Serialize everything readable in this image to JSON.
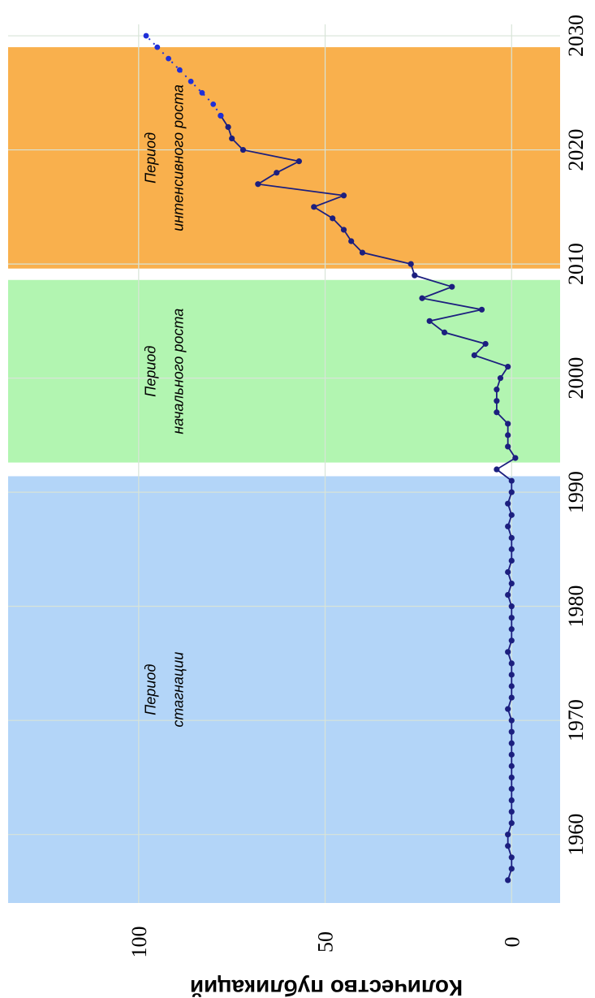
{
  "chart_data": {
    "type": "line",
    "ylabel": "Количество публикаций",
    "xlabel": "",
    "xlim": [
      1954,
      2031
    ],
    "ylim": [
      -13,
      135
    ],
    "x_ticks": [
      "1960",
      "1970",
      "1980",
      "1990",
      "2000",
      "2010",
      "2020",
      "2030"
    ],
    "y_ticks": [
      "0",
      "50",
      "100"
    ],
    "grid": true,
    "periods": [
      {
        "label_lines": [
          "Период",
          "стагнации"
        ],
        "x_start": 1954,
        "x_end": 1991.4,
        "color": "#b3d5f8"
      },
      {
        "label_lines": [
          "Период",
          "начального роста"
        ],
        "x_start": 1992.6,
        "x_end": 2008.6,
        "color": "#b2f5b1"
      },
      {
        "label_lines": [
          "Период",
          "интенсивного роста"
        ],
        "x_start": 2009.6,
        "x_end": 2029.0,
        "color": "#f9b04d"
      }
    ],
    "series": [
      {
        "style": "solid",
        "color": "#1c1f7f",
        "x": [
          1956,
          1957,
          1958,
          1959,
          1960,
          1961,
          1962,
          1963,
          1964,
          1965,
          1966,
          1967,
          1968,
          1969,
          1970,
          1971,
          1972,
          1973,
          1974,
          1975,
          1976,
          1977,
          1978,
          1979,
          1980,
          1981,
          1982,
          1983,
          1984,
          1985,
          1986,
          1987,
          1988,
          1989,
          1990,
          1991,
          1992,
          1993,
          1994,
          1995,
          1996,
          1997,
          1998,
          1999,
          2000,
          2001,
          2002,
          2003,
          2004,
          2005,
          2006,
          2007,
          2008,
          2009,
          2010,
          2011,
          2012,
          2013,
          2014,
          2015,
          2016,
          2017,
          2018,
          2019,
          2020,
          2021,
          2022,
          2023
        ],
        "y": [
          1,
          0,
          0,
          1,
          1,
          0,
          0,
          0,
          0,
          0,
          0,
          0,
          0,
          0,
          0,
          1,
          0,
          0,
          0,
          0,
          1,
          0,
          0,
          0,
          0,
          1,
          0,
          1,
          0,
          0,
          0,
          1,
          0,
          1,
          0,
          0,
          4,
          -1,
          1,
          1,
          1,
          4,
          4,
          4,
          3,
          1,
          10,
          7,
          18,
          22,
          8,
          24,
          16,
          26,
          27,
          40,
          43,
          45,
          48,
          53,
          45,
          68,
          63,
          57,
          72,
          75,
          76,
          78
        ]
      },
      {
        "style": "dotted",
        "color": "#1f2fd8",
        "x": [
          2023,
          2024,
          2025,
          2026,
          2027,
          2028,
          2029,
          2030
        ],
        "y": [
          78,
          80,
          83,
          86,
          89,
          92,
          95,
          98
        ]
      }
    ]
  }
}
